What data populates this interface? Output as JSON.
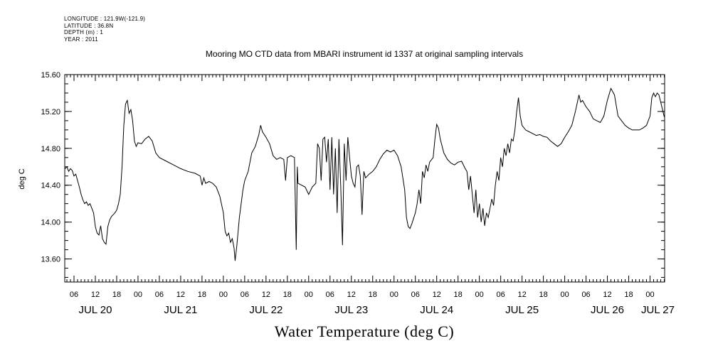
{
  "header": {
    "longitude": "LONGITUDE : 121.9W(-121.9)",
    "latitude": "LATITUDE : 36.8N",
    "depth": "DEPTH (m) : 1",
    "year": "YEAR : 2011"
  },
  "chart_data": {
    "type": "line",
    "title": "Mooring MO CTD data from MBARI instrument id 1337 at original sampling intervals",
    "xlabel": "Water Temperature (deg C)",
    "ylabel": "deg C",
    "ylim": [
      13.35,
      15.6
    ],
    "xlim_hours_from_jul20_00": [
      3.4,
      172.1
    ],
    "y_ticks": [
      "13.60",
      "14.00",
      "14.40",
      "14.80",
      "15.20",
      "15.60"
    ],
    "y_tick_values": [
      13.6,
      14.0,
      14.4,
      14.8,
      15.2,
      15.6
    ],
    "hour_ticks": [
      "06",
      "12",
      "18",
      "00",
      "06",
      "12",
      "18",
      "00",
      "06",
      "12",
      "18",
      "00",
      "06",
      "12",
      "18",
      "00",
      "06",
      "12",
      "18",
      "00",
      "06",
      "12",
      "18",
      "00",
      "06",
      "12",
      "18",
      "00"
    ],
    "day_labels": [
      "JUL 20",
      "JUL 21",
      "JUL 22",
      "JUL 23",
      "JUL 24",
      "JUL 25",
      "JUL 26",
      "JUL 27"
    ],
    "grid": false,
    "series": [
      {
        "x_units": "hours since Jul 20 00:00",
        "points": [
          [
            3.5,
            14.58
          ],
          [
            4.0,
            14.6
          ],
          [
            4.5,
            14.55
          ],
          [
            5.0,
            14.58
          ],
          [
            5.5,
            14.56
          ],
          [
            6.0,
            14.5
          ],
          [
            6.5,
            14.52
          ],
          [
            7.0,
            14.45
          ],
          [
            7.5,
            14.38
          ],
          [
            8.0,
            14.3
          ],
          [
            8.5,
            14.24
          ],
          [
            9.0,
            14.2
          ],
          [
            9.5,
            14.22
          ],
          [
            10.0,
            14.18
          ],
          [
            10.5,
            14.2
          ],
          [
            11.0,
            14.15
          ],
          [
            11.5,
            14.1
          ],
          [
            12.0,
            13.95
          ],
          [
            12.5,
            13.88
          ],
          [
            13.0,
            13.86
          ],
          [
            13.5,
            13.96
          ],
          [
            14.0,
            13.82
          ],
          [
            14.5,
            13.78
          ],
          [
            15.0,
            13.76
          ],
          [
            15.5,
            13.95
          ],
          [
            16.0,
            14.02
          ],
          [
            16.5,
            14.06
          ],
          [
            17.0,
            14.08
          ],
          [
            17.5,
            14.1
          ],
          [
            18.0,
            14.13
          ],
          [
            18.5,
            14.2
          ],
          [
            19.0,
            14.3
          ],
          [
            19.5,
            14.6
          ],
          [
            20.0,
            15.05
          ],
          [
            20.5,
            15.28
          ],
          [
            21.0,
            15.32
          ],
          [
            21.5,
            15.18
          ],
          [
            22.0,
            15.22
          ],
          [
            22.5,
            15.1
          ],
          [
            23.0,
            14.88
          ],
          [
            23.5,
            14.82
          ],
          [
            24.0,
            14.86
          ],
          [
            25.0,
            14.85
          ],
          [
            26.0,
            14.9
          ],
          [
            27.0,
            14.93
          ],
          [
            28.0,
            14.88
          ],
          [
            29.0,
            14.75
          ],
          [
            30.0,
            14.7
          ],
          [
            32.0,
            14.66
          ],
          [
            34.0,
            14.62
          ],
          [
            36.0,
            14.58
          ],
          [
            38.0,
            14.55
          ],
          [
            40.0,
            14.53
          ],
          [
            41.5,
            14.5
          ],
          [
            42.0,
            14.4
          ],
          [
            42.5,
            14.48
          ],
          [
            43.0,
            14.42
          ],
          [
            44.0,
            14.44
          ],
          [
            45.0,
            14.42
          ],
          [
            46.0,
            14.38
          ],
          [
            47.0,
            14.28
          ],
          [
            48.0,
            14.1
          ],
          [
            48.5,
            13.9
          ],
          [
            49.0,
            13.85
          ],
          [
            49.5,
            13.88
          ],
          [
            50.0,
            13.78
          ],
          [
            50.5,
            13.82
          ],
          [
            51.0,
            13.72
          ],
          [
            51.3,
            13.58
          ],
          [
            51.8,
            13.75
          ],
          [
            52.5,
            14.05
          ],
          [
            53.5,
            14.35
          ],
          [
            54.0,
            14.45
          ],
          [
            55.0,
            14.55
          ],
          [
            56.0,
            14.75
          ],
          [
            57.0,
            14.82
          ],
          [
            58.0,
            14.95
          ],
          [
            58.5,
            15.05
          ],
          [
            59.0,
            14.98
          ],
          [
            60.0,
            14.92
          ],
          [
            61.0,
            14.85
          ],
          [
            62.0,
            14.72
          ],
          [
            63.0,
            14.68
          ],
          [
            64.0,
            14.7
          ],
          [
            65.0,
            14.68
          ],
          [
            65.5,
            14.45
          ],
          [
            66.0,
            14.7
          ],
          [
            67.0,
            14.72
          ],
          [
            68.0,
            14.7
          ],
          [
            68.5,
            13.7
          ],
          [
            68.8,
            14.6
          ],
          [
            69.0,
            14.42
          ],
          [
            70.0,
            14.4
          ],
          [
            71.0,
            14.38
          ],
          [
            72.0,
            14.3
          ],
          [
            73.0,
            14.38
          ],
          [
            74.0,
            14.42
          ],
          [
            74.5,
            14.85
          ],
          [
            75.0,
            14.8
          ],
          [
            75.5,
            14.45
          ],
          [
            76.0,
            14.9
          ],
          [
            76.5,
            14.92
          ],
          [
            77.0,
            14.65
          ],
          [
            77.5,
            14.9
          ],
          [
            78.0,
            14.35
          ],
          [
            78.5,
            14.92
          ],
          [
            79.0,
            14.3
          ],
          [
            79.5,
            14.8
          ],
          [
            80.0,
            14.1
          ],
          [
            80.5,
            14.9
          ],
          [
            81.0,
            14.4
          ],
          [
            81.5,
            13.75
          ],
          [
            82.0,
            14.85
          ],
          [
            82.5,
            14.45
          ],
          [
            83.0,
            14.92
          ],
          [
            83.5,
            14.7
          ],
          [
            84.0,
            14.5
          ],
          [
            84.5,
            14.42
          ],
          [
            85.0,
            14.38
          ],
          [
            85.5,
            14.6
          ],
          [
            86.0,
            14.62
          ],
          [
            86.5,
            14.5
          ],
          [
            87.0,
            14.08
          ],
          [
            87.5,
            14.55
          ],
          [
            88.0,
            14.48
          ],
          [
            89.0,
            14.52
          ],
          [
            90.0,
            14.55
          ],
          [
            91.0,
            14.6
          ],
          [
            92.0,
            14.68
          ],
          [
            93.0,
            14.74
          ],
          [
            94.0,
            14.78
          ],
          [
            95.0,
            14.76
          ],
          [
            96.0,
            14.78
          ],
          [
            97.0,
            14.72
          ],
          [
            98.0,
            14.6
          ],
          [
            99.0,
            14.35
          ],
          [
            99.5,
            14.05
          ],
          [
            100.0,
            13.95
          ],
          [
            100.5,
            13.93
          ],
          [
            101.0,
            13.98
          ],
          [
            102.0,
            14.1
          ],
          [
            102.5,
            14.2
          ],
          [
            103.0,
            14.35
          ],
          [
            103.5,
            14.2
          ],
          [
            104.0,
            14.55
          ],
          [
            104.5,
            14.48
          ],
          [
            105.0,
            14.62
          ],
          [
            105.5,
            14.55
          ],
          [
            106.0,
            14.65
          ],
          [
            107.0,
            14.7
          ],
          [
            107.5,
            14.9
          ],
          [
            108.0,
            15.06
          ],
          [
            108.5,
            15.02
          ],
          [
            109.0,
            14.9
          ],
          [
            110.0,
            14.75
          ],
          [
            111.0,
            14.68
          ],
          [
            112.0,
            14.64
          ],
          [
            113.0,
            14.62
          ],
          [
            114.0,
            14.65
          ],
          [
            115.0,
            14.66
          ],
          [
            116.0,
            14.58
          ],
          [
            116.5,
            14.55
          ],
          [
            117.0,
            14.35
          ],
          [
            117.5,
            14.5
          ],
          [
            118.0,
            14.3
          ],
          [
            118.5,
            14.1
          ],
          [
            119.0,
            14.35
          ],
          [
            119.5,
            14.05
          ],
          [
            120.0,
            14.2
          ],
          [
            120.5,
            14.0
          ],
          [
            121.0,
            14.15
          ],
          [
            121.5,
            13.96
          ],
          [
            122.0,
            14.1
          ],
          [
            122.5,
            14.05
          ],
          [
            123.0,
            14.15
          ],
          [
            123.5,
            14.25
          ],
          [
            124.0,
            14.18
          ],
          [
            124.5,
            14.4
          ],
          [
            125.0,
            14.55
          ],
          [
            125.5,
            14.45
          ],
          [
            126.0,
            14.7
          ],
          [
            126.5,
            14.6
          ],
          [
            127.0,
            14.8
          ],
          [
            127.5,
            14.72
          ],
          [
            128.0,
            14.85
          ],
          [
            128.5,
            14.75
          ],
          [
            129.0,
            14.9
          ],
          [
            129.5,
            14.88
          ],
          [
            130.0,
            15.0
          ],
          [
            130.5,
            15.2
          ],
          [
            131.0,
            15.35
          ],
          [
            131.5,
            15.15
          ],
          [
            132.0,
            15.05
          ],
          [
            133.0,
            15.0
          ],
          [
            134.0,
            14.98
          ],
          [
            135.0,
            14.96
          ],
          [
            136.0,
            14.94
          ],
          [
            137.0,
            14.95
          ],
          [
            138.0,
            14.93
          ],
          [
            139.0,
            14.92
          ],
          [
            140.0,
            14.88
          ],
          [
            141.0,
            14.85
          ],
          [
            142.0,
            14.82
          ],
          [
            143.0,
            14.85
          ],
          [
            144.0,
            14.92
          ],
          [
            145.0,
            14.98
          ],
          [
            146.0,
            15.05
          ],
          [
            147.0,
            15.2
          ],
          [
            148.0,
            15.38
          ],
          [
            148.5,
            15.3
          ],
          [
            149.0,
            15.32
          ],
          [
            150.0,
            15.25
          ],
          [
            151.0,
            15.2
          ],
          [
            152.0,
            15.12
          ],
          [
            153.0,
            15.1
          ],
          [
            154.0,
            15.08
          ],
          [
            155.0,
            15.15
          ],
          [
            156.0,
            15.32
          ],
          [
            157.0,
            15.45
          ],
          [
            158.0,
            15.38
          ],
          [
            159.0,
            15.15
          ],
          [
            160.0,
            15.1
          ],
          [
            161.0,
            15.05
          ],
          [
            162.0,
            15.02
          ],
          [
            163.0,
            15.0
          ],
          [
            164.0,
            15.0
          ],
          [
            165.0,
            15.0
          ],
          [
            166.0,
            15.02
          ],
          [
            167.0,
            15.05
          ],
          [
            168.0,
            15.15
          ],
          [
            168.5,
            15.35
          ],
          [
            169.0,
            15.4
          ],
          [
            169.5,
            15.36
          ],
          [
            170.0,
            15.4
          ],
          [
            170.5,
            15.38
          ],
          [
            171.0,
            15.3
          ],
          [
            171.5,
            15.22
          ],
          [
            172.0,
            15.14
          ]
        ]
      }
    ]
  }
}
